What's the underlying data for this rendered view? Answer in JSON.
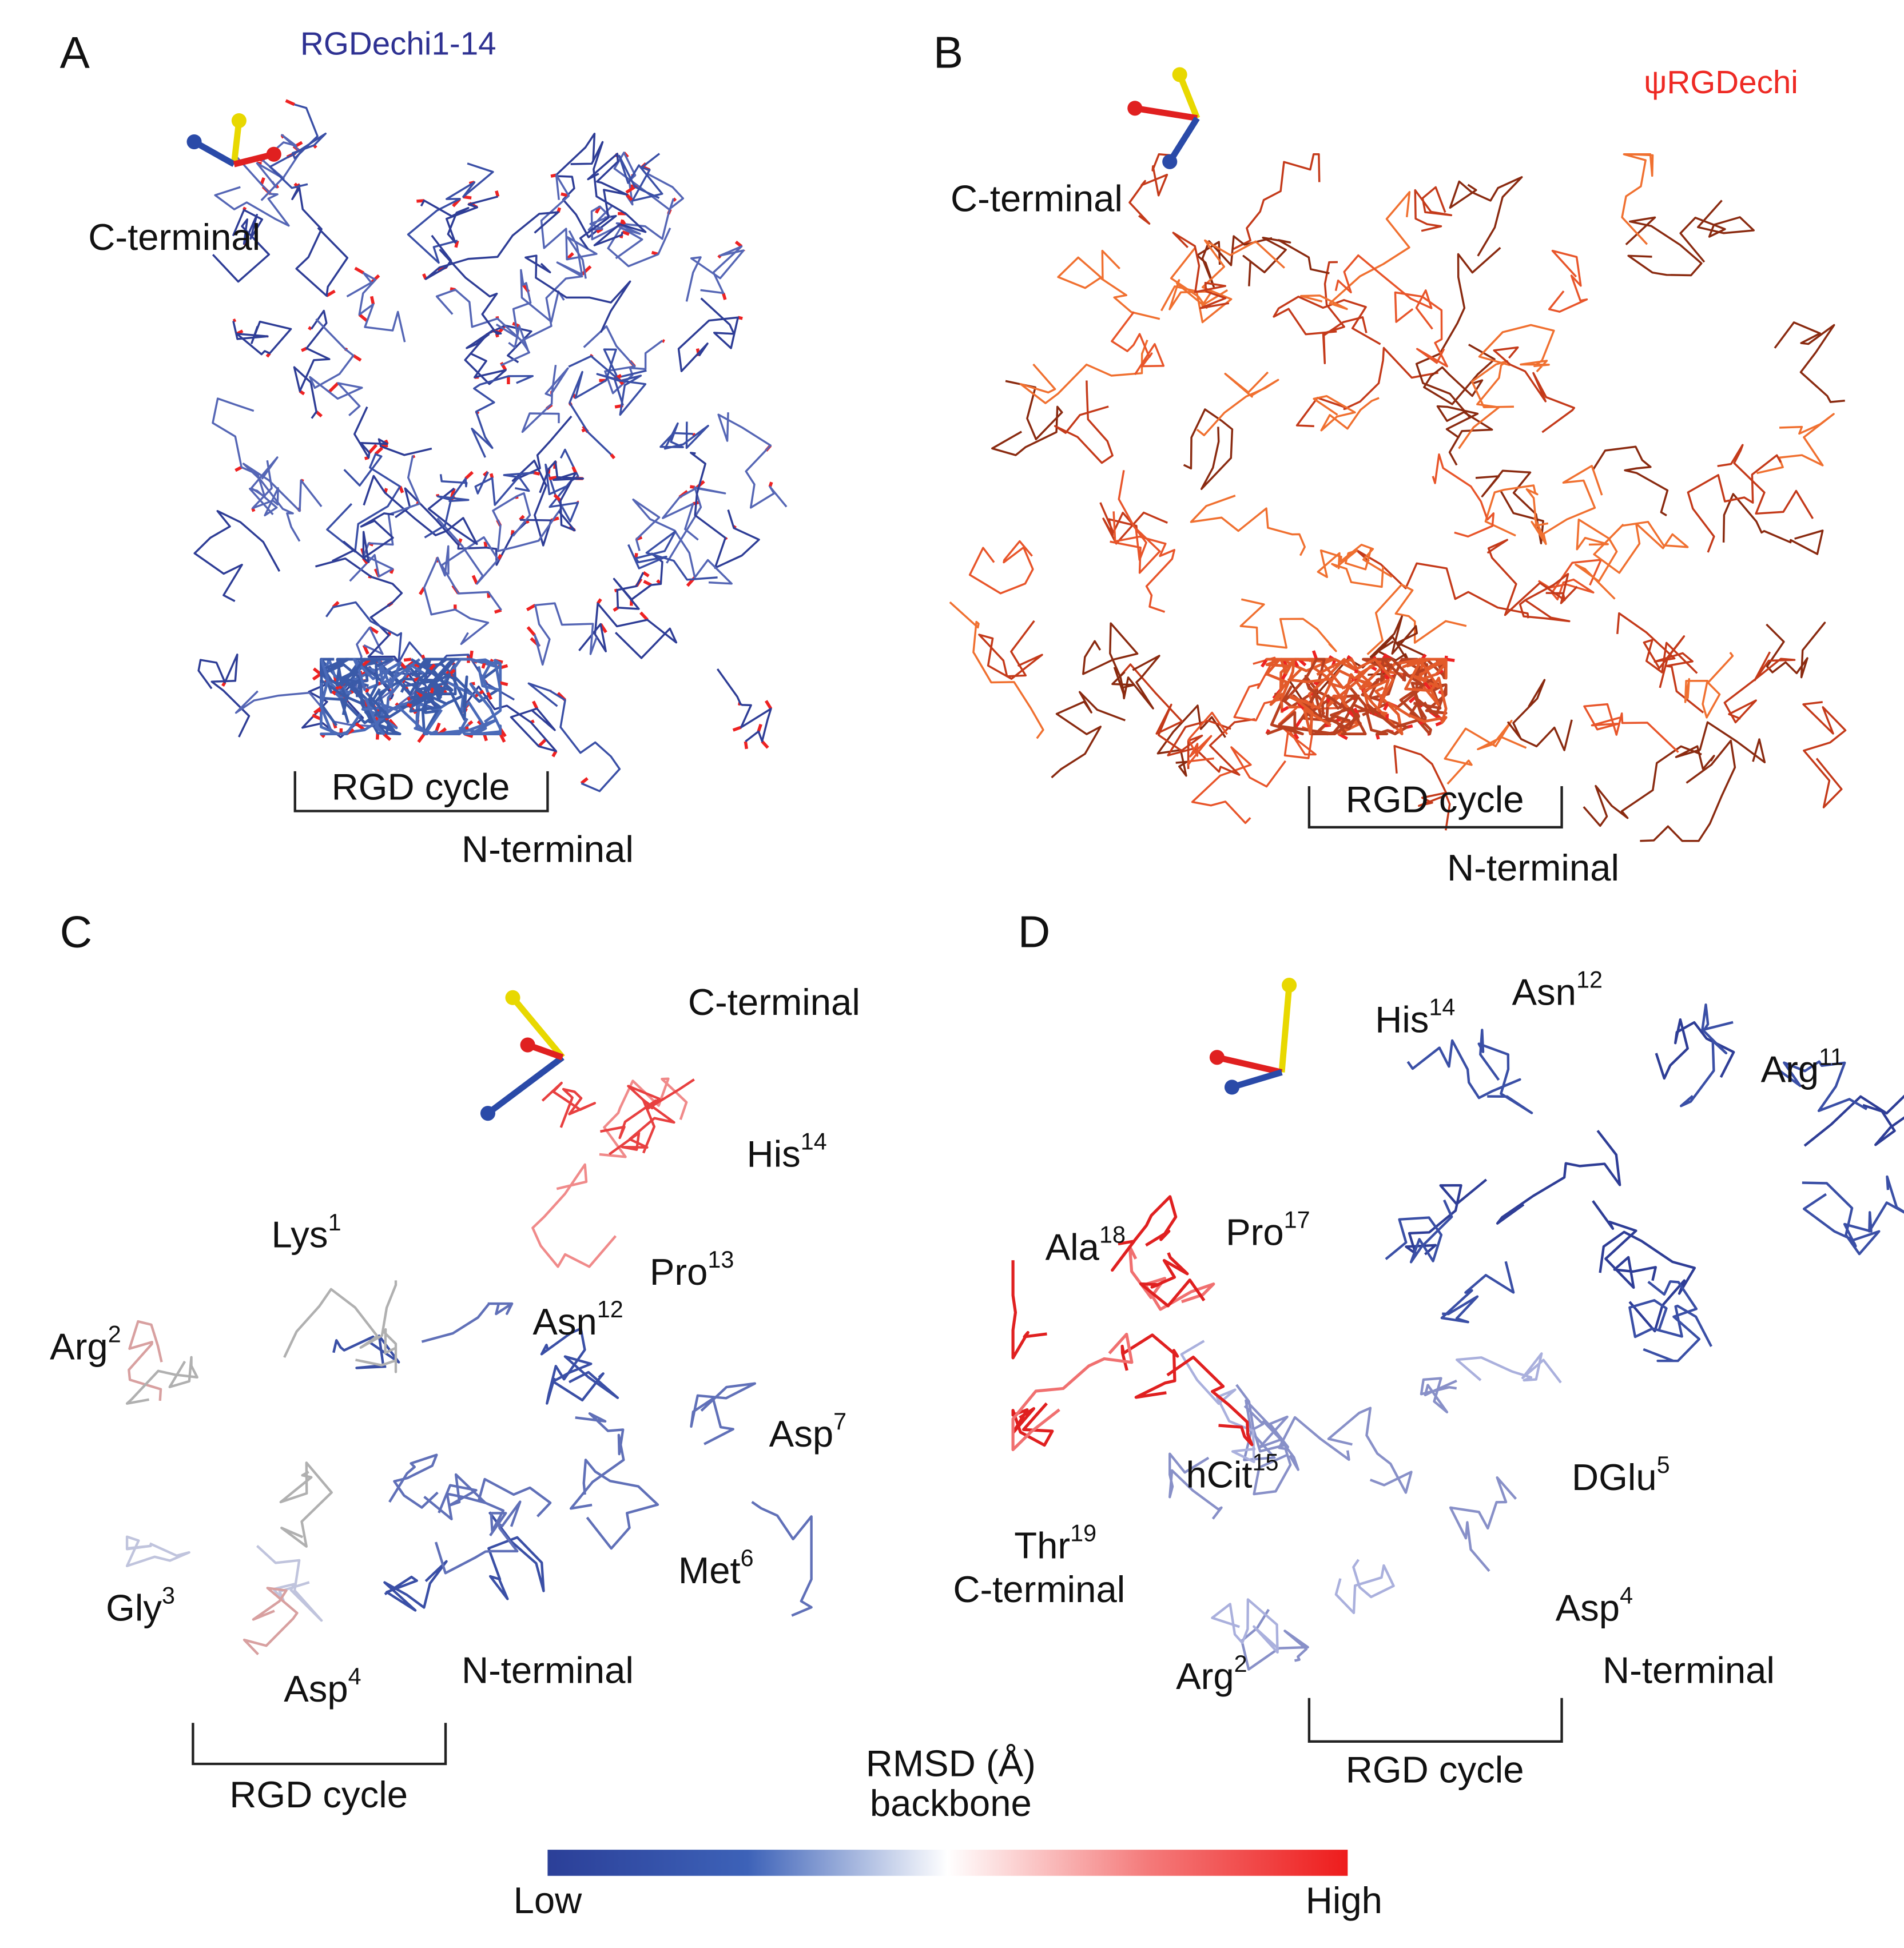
{
  "panels": [
    {
      "label": "A",
      "title": "RGDechi1-14",
      "annotations": [
        "C-terminal",
        "RGD cycle",
        "N-terminal"
      ]
    },
    {
      "label": "B",
      "title": "ψRGDechi",
      "annotations": [
        "C-terminal",
        "RGD cycle",
        "N-terminal"
      ]
    },
    {
      "label": "C",
      "annotations": [
        "C-terminal",
        "N-terminal",
        "RGD cycle"
      ],
      "residues": [
        {
          "name": "His",
          "sup": "14"
        },
        {
          "name": "Pro",
          "sup": "13"
        },
        {
          "name": "Lys",
          "sup": "1"
        },
        {
          "name": "Asn",
          "sup": "12"
        },
        {
          "name": "Arg",
          "sup": "2"
        },
        {
          "name": "Asp",
          "sup": "7"
        },
        {
          "name": "Met",
          "sup": "6"
        },
        {
          "name": "Gly",
          "sup": "3"
        },
        {
          "name": "Asp",
          "sup": "4"
        }
      ]
    },
    {
      "label": "D",
      "annotations": [
        "C-terminal",
        "N-terminal",
        "RGD cycle"
      ],
      "residues": [
        {
          "name": "His",
          "sup": "14"
        },
        {
          "name": "Asn",
          "sup": "12"
        },
        {
          "name": "Arg",
          "sup": "11"
        },
        {
          "name": "Ala",
          "sup": "18"
        },
        {
          "name": "Pro",
          "sup": "17"
        },
        {
          "name": "hCit",
          "sup": "15"
        },
        {
          "name": "DGlu",
          "sup": "5"
        },
        {
          "name": "Thr",
          "sup": "19"
        },
        {
          "name": "Asp",
          "sup": "4"
        },
        {
          "name": "Arg",
          "sup": "2"
        }
      ]
    }
  ],
  "colorbar": {
    "title": "RMSD (Å)",
    "subtitle": "backbone",
    "low": "Low",
    "high": "High"
  }
}
